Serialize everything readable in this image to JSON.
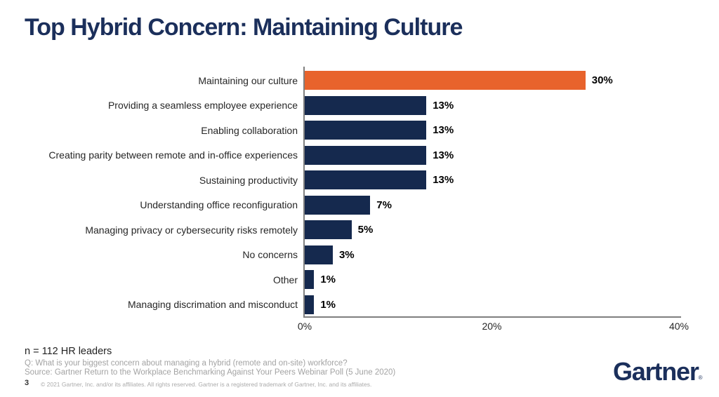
{
  "title": "Top Hybrid Concern: Maintaining Culture",
  "chart_data": {
    "type": "bar",
    "orientation": "horizontal",
    "title": "",
    "xlabel": "",
    "ylabel": "",
    "xlim": [
      0,
      40
    ],
    "x_tick_labels": [
      "0%",
      "20%",
      "40%"
    ],
    "x_tick_values": [
      0,
      20,
      40
    ],
    "grid": false,
    "legend": false,
    "categories": [
      "Maintaining our culture",
      "Providing a seamless employee experience",
      "Enabling collaboration",
      "Creating parity between remote and in-office experiences",
      "Sustaining productivity",
      "Understanding office reconfiguration",
      "Managing privacy or cybersecurity risks remotely",
      "No concerns",
      "Other",
      "Managing discrimation and misconduct"
    ],
    "values": [
      30,
      13,
      13,
      13,
      13,
      7,
      5,
      3,
      1,
      1
    ],
    "value_labels": [
      "30%",
      "13%",
      "13%",
      "13%",
      "13%",
      "7%",
      "5%",
      "3%",
      "1%",
      "1%"
    ],
    "highlight_index": 0,
    "colors": {
      "highlight": "#E8632C",
      "default": "#15294E",
      "axis": "#7F7F7F",
      "value_label": "#000000",
      "category_label": "#262626"
    }
  },
  "footer": {
    "n_line": "n = 112 HR leaders",
    "q_line": "Q: What is your biggest concern about managing a hybrid (remote and on-site) workforce?",
    "source_line": "Source: Gartner Return to the Workplace Benchmarking Against Your Peers Webinar Poll (5 June 2020)",
    "page_number": "3",
    "copyright": "© 2021 Gartner, Inc. and/or its affiliates. All rights reserved. Gartner is a registered trademark of Gartner, Inc. and its affiliates.",
    "logo_text": "Gartner",
    "logo_mark": "®"
  },
  "colors": {
    "title": "#1B2F5B",
    "background": "#FFFFFF",
    "footer_gray": "#A3A3A3",
    "logo_navy": "#1B2F5B"
  }
}
